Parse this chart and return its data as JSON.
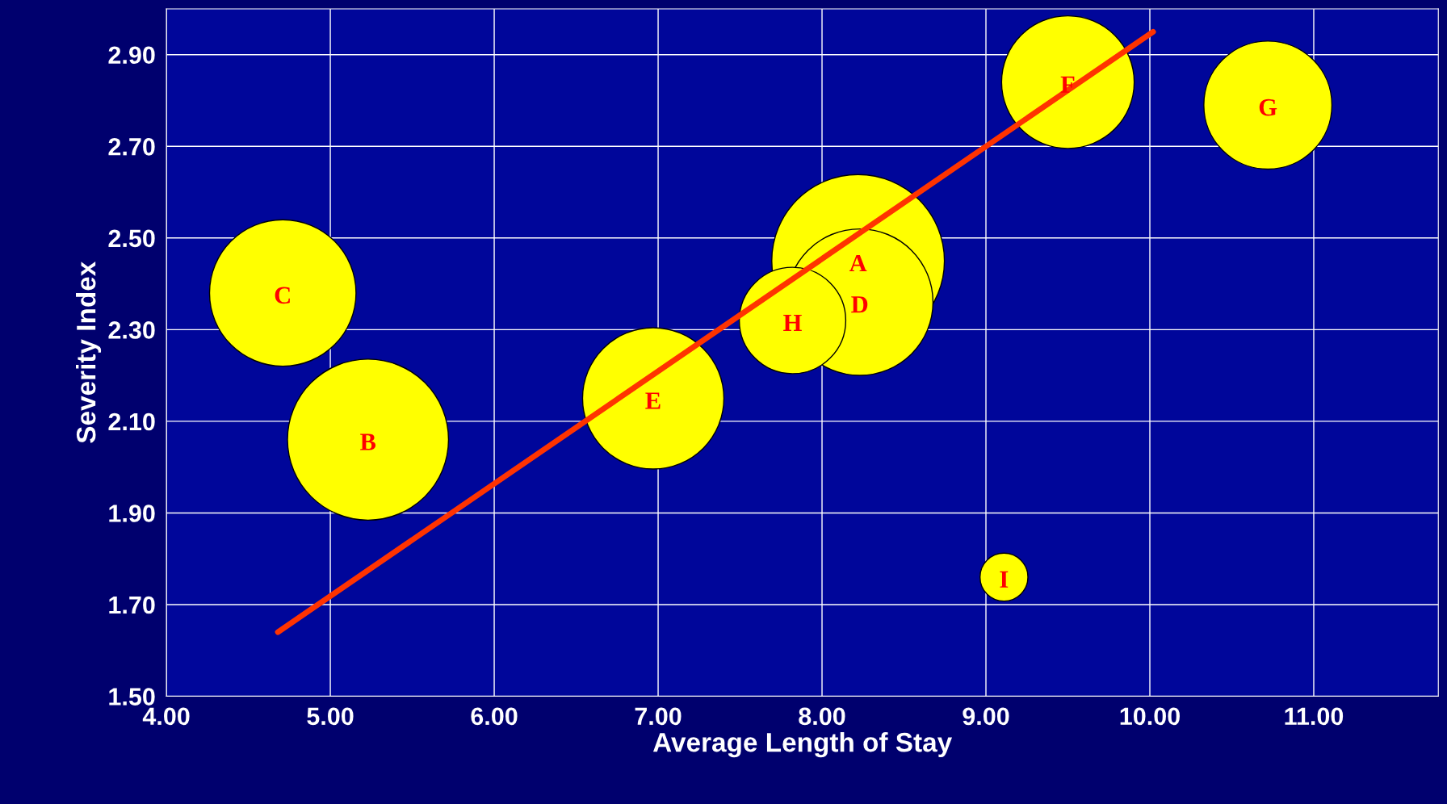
{
  "chart_data": {
    "type": "bubble",
    "xlabel": "Average Length of Stay",
    "ylabel": "Severity Index",
    "xlim": [
      4.0,
      11.76
    ],
    "ylim": [
      1.5,
      3.0
    ],
    "xticks": [
      {
        "value": 4,
        "label": "4.00"
      },
      {
        "value": 5,
        "label": "5.00"
      },
      {
        "value": 6,
        "label": "6.00"
      },
      {
        "value": 7,
        "label": "7.00"
      },
      {
        "value": 8,
        "label": "8.00"
      },
      {
        "value": 9,
        "label": "9.00"
      },
      {
        "value": 10,
        "label": "10.00"
      },
      {
        "value": 11,
        "label": "11.00"
      }
    ],
    "yticks": [
      {
        "value": 1.5,
        "label": "1.50"
      },
      {
        "value": 1.7,
        "label": "1.70"
      },
      {
        "value": 1.9,
        "label": "1.90"
      },
      {
        "value": 2.1,
        "label": "2.10"
      },
      {
        "value": 2.3,
        "label": "2.30"
      },
      {
        "value": 2.5,
        "label": "2.50"
      },
      {
        "value": 2.7,
        "label": "2.70"
      },
      {
        "value": 2.9,
        "label": "2.90"
      }
    ],
    "grid": true,
    "series": [
      {
        "color": "#ffff00",
        "x": [
          8.22,
          5.23,
          4.71,
          8.23,
          6.97,
          9.5,
          10.72,
          7.82,
          9.11
        ],
        "values": [
          2.45,
          2.06,
          2.38,
          2.36,
          2.15,
          2.84,
          2.79,
          2.32,
          1.76
        ],
        "sizes": [
          1,
          0.87,
          0.72,
          0.72,
          0.67,
          0.59,
          0.55,
          0.38,
          0.077
        ]
      },
      {
        "type": "line",
        "color": "#ff3300",
        "x": [
          4.68,
          10.02
        ],
        "values": [
          1.64,
          2.95
        ]
      }
    ],
    "annotations": [
      {
        "text": "A",
        "x": 8.22,
        "y": 2.45
      },
      {
        "text": "B",
        "x": 5.23,
        "y": 2.06
      },
      {
        "text": "C",
        "x": 4.71,
        "y": 2.38
      },
      {
        "text": "D",
        "x": 8.23,
        "y": 2.36
      },
      {
        "text": "E",
        "x": 6.97,
        "y": 2.15
      },
      {
        "text": "F",
        "x": 9.5,
        "y": 2.84
      },
      {
        "text": "G",
        "x": 10.72,
        "y": 2.79
      },
      {
        "text": "H",
        "x": 7.82,
        "y": 2.32
      },
      {
        "text": "I",
        "x": 9.11,
        "y": 1.76
      }
    ]
  }
}
